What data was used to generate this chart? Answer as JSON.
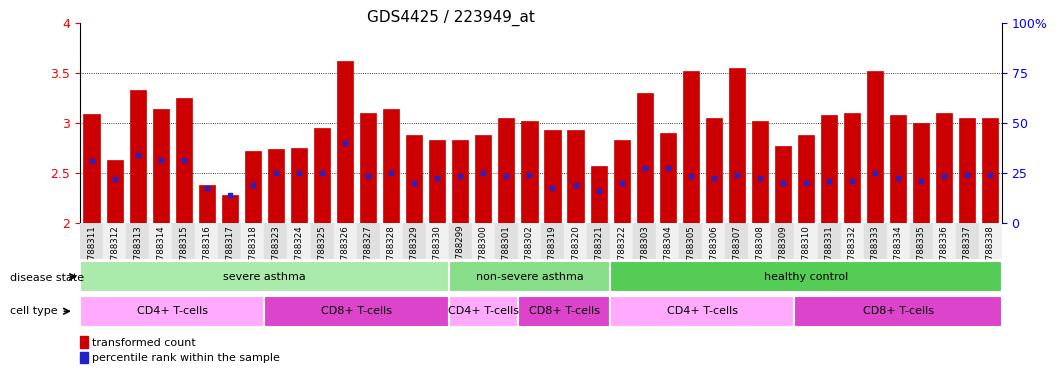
{
  "title": "GDS4425 / 223949_at",
  "samples": [
    "GSM788311",
    "GSM788312",
    "GSM788313",
    "GSM788314",
    "GSM788315",
    "GSM788316",
    "GSM788317",
    "GSM788318",
    "GSM788323",
    "GSM788324",
    "GSM788325",
    "GSM788326",
    "GSM788327",
    "GSM788328",
    "GSM788329",
    "GSM788330",
    "GSM788299",
    "GSM788300",
    "GSM788301",
    "GSM788302",
    "GSM788319",
    "GSM788320",
    "GSM788321",
    "GSM788322",
    "GSM788303",
    "GSM788304",
    "GSM788305",
    "GSM788306",
    "GSM788307",
    "GSM788308",
    "GSM788309",
    "GSM788310",
    "GSM788331",
    "GSM788332",
    "GSM788333",
    "GSM788334",
    "GSM788335",
    "GSM788336",
    "GSM788337",
    "GSM788338"
  ],
  "bar_values": [
    3.09,
    2.63,
    3.33,
    3.14,
    3.25,
    2.38,
    2.28,
    2.72,
    2.74,
    2.75,
    2.95,
    3.62,
    3.1,
    3.14,
    2.88,
    2.83,
    2.83,
    2.88,
    3.05,
    3.02,
    2.93,
    2.93,
    2.57,
    2.83,
    3.3,
    2.9,
    3.52,
    3.05,
    3.55,
    3.02,
    2.77,
    2.88,
    3.08,
    3.1,
    3.52,
    3.08,
    3.0,
    3.1,
    3.05,
    3.05
  ],
  "percentile_values": [
    2.62,
    2.44,
    2.68,
    2.63,
    2.63,
    2.35,
    2.28,
    2.38,
    2.5,
    2.5,
    2.5,
    2.8,
    2.47,
    2.5,
    2.4,
    2.45,
    2.47,
    2.5,
    2.47,
    2.48,
    2.35,
    2.38,
    2.32,
    2.4,
    2.55,
    2.55,
    2.47,
    2.45,
    2.48,
    2.45,
    2.4,
    2.4,
    2.42,
    2.42,
    2.5,
    2.45,
    2.42,
    2.47,
    2.48,
    2.48
  ],
  "ylim": [
    2.0,
    4.0
  ],
  "yticks_left": [
    2.0,
    2.5,
    3.0,
    3.5,
    4.0
  ],
  "yticks_left_labels": [
    "2",
    "2.5",
    "3",
    "3.5",
    "4"
  ],
  "yticks_right": [
    0,
    25,
    50,
    75,
    100
  ],
  "yticks_right_labels": [
    "0",
    "25",
    "50",
    "75",
    "100%"
  ],
  "bar_color": "#cc0000",
  "dot_color": "#2222cc",
  "bar_width": 0.7,
  "disease_state_labels": [
    "severe asthma",
    "non-severe asthma",
    "healthy control"
  ],
  "disease_state_starts": [
    0,
    16,
    23
  ],
  "disease_state_ends": [
    16,
    23,
    40
  ],
  "disease_state_colors": [
    "#aaeaaa",
    "#88dd88",
    "#55cc55"
  ],
  "cell_type_labels": [
    "CD4+ T-cells",
    "CD8+ T-cells",
    "CD4+ T-cells",
    "CD8+ T-cells",
    "CD4+ T-cells",
    "CD8+ T-cells"
  ],
  "cell_type_starts": [
    0,
    8,
    16,
    19,
    23,
    31
  ],
  "cell_type_ends": [
    8,
    16,
    19,
    23,
    31,
    40
  ],
  "cell_type_color_cd4": "#ffaaff",
  "cell_type_color_cd8": "#dd44cc",
  "legend_red_label": "transformed count",
  "legend_blue_label": "percentile rank within the sample",
  "ds_row_label": "disease state",
  "ct_row_label": "cell type"
}
